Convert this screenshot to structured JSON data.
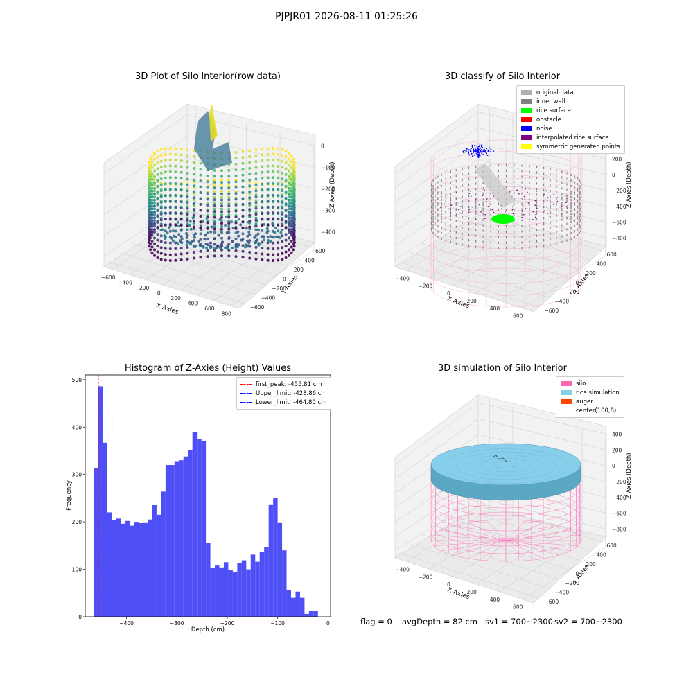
{
  "suptitle": "PJPJR01 2026-08-11 01:25:26",
  "colors": {
    "original_data": "#b0b0b0",
    "inner_wall": "#808080",
    "rice_surface": "#00ff00",
    "obstacle": "#ff0000",
    "noise": "#0000ff",
    "interpolated": "#800080",
    "symmetric": "#ffff00",
    "silo": "#ff69b4",
    "rice_sim": "#87ceeb",
    "auger": "#ff4500",
    "hist_bar": "#4f4ff7"
  },
  "panels": {
    "raw": {
      "title": "3D Plot of Silo Interior(row data)",
      "xlabel": "X Axies",
      "ylabel": "Y Axies",
      "zlabel": "Z Axies (Depth)",
      "xticks": [
        "−600",
        "−400",
        "−200",
        "0",
        "200",
        "400",
        "600",
        "800"
      ],
      "yticks": [
        "600",
        "400",
        "200",
        "0",
        "−200",
        "−400",
        "−600"
      ],
      "zticks": [
        "0",
        "−100",
        "−200",
        "−300",
        "−400"
      ]
    },
    "classify": {
      "title": "3D classify of Silo Interior",
      "xlabel": "X Axies",
      "ylabel": "Y Axies",
      "zlabel": "Z Axies (Depth)",
      "xticks": [
        "−400",
        "−200",
        "0",
        "200",
        "400",
        "600"
      ],
      "yticks": [
        "600",
        "400",
        "200",
        "0",
        "−200",
        "−400",
        "−600"
      ],
      "zticks": [
        "400",
        "200",
        "0",
        "−200",
        "−400",
        "−600",
        "−800"
      ],
      "legend": [
        "original data",
        "inner wall",
        "rice surface",
        "obstacle",
        "noise",
        "interpolated rice surface",
        "symmetric generated points"
      ]
    },
    "simulation": {
      "title": "3D simulation of Silo Interior",
      "xlabel": "X Axies",
      "ylabel": "Y Axies",
      "zlabel": "Z Axies (Depth)",
      "xticks": [
        "−400",
        "−200",
        "0",
        "200",
        "400",
        "600"
      ],
      "yticks": [
        "600",
        "400",
        "200",
        "0",
        "−200",
        "−400",
        "−600"
      ],
      "zticks": [
        "400",
        "200",
        "0",
        "−200",
        "−400",
        "−600",
        "−800"
      ],
      "legend": [
        "silo",
        "rice simulation",
        "auger",
        "center(100,8)"
      ]
    }
  },
  "status": {
    "flag": "flag = 0",
    "avg": "avgDepth = 82 cm",
    "sv1": "sv1 = 700~2300",
    "sv2": "sv2 = 700~2300"
  },
  "chart_data": {
    "type": "bar",
    "title": "Histogram of Z-Axies (Height) Values",
    "xlabel": "Depth (cm)",
    "ylabel": "Frequency",
    "xlim": [
      -482,
      5
    ],
    "ylim": [
      0,
      510
    ],
    "xticks": [
      -400,
      -300,
      -200,
      -100,
      0
    ],
    "xtick_labels": [
      "−400",
      "−300",
      "−200",
      "−100",
      "0"
    ],
    "yticks": [
      0,
      100,
      200,
      300,
      400,
      500
    ],
    "bin_start": -465,
    "bin_width": 8.9,
    "values": [
      313,
      486,
      367,
      220,
      204,
      207,
      196,
      202,
      192,
      200,
      198,
      199,
      205,
      236,
      215,
      264,
      320,
      320,
      328,
      330,
      338,
      352,
      390,
      375,
      370,
      156,
      103,
      108,
      104,
      115,
      98,
      95,
      114,
      119,
      100,
      131,
      116,
      136,
      147,
      237,
      250,
      199,
      140,
      57,
      40,
      53,
      40,
      6,
      12,
      12
    ],
    "vlines": [
      {
        "label": "first_peak: -455.81 cm",
        "x": -455.81,
        "color": "#ff0000"
      },
      {
        "label": "Upper_limit: -428.86 cm",
        "x": -428.86,
        "color": "#0000ff"
      },
      {
        "label": "Lower_limit: -464.80 cm",
        "x": -464.8,
        "color": "#0000ff"
      }
    ]
  }
}
